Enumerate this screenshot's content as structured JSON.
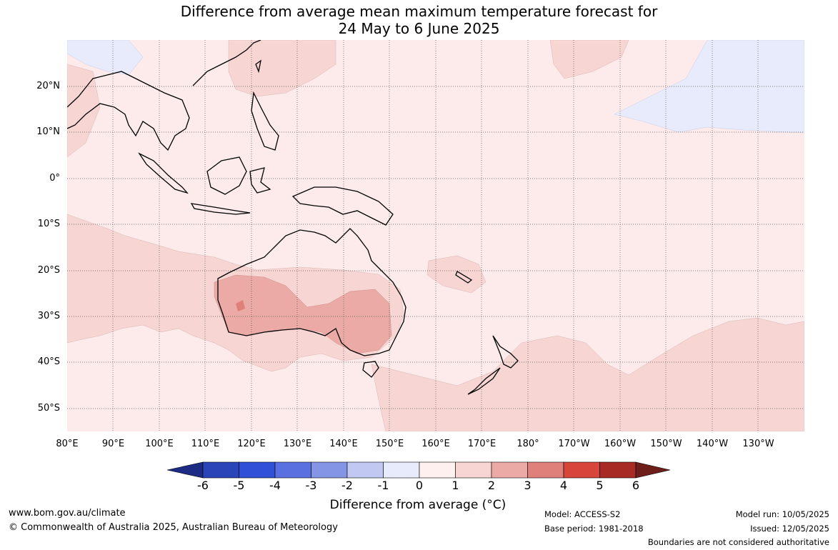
{
  "title_line1": "Difference from average mean maximum temperature forecast for",
  "title_line2": "24 May to 6 June 2025",
  "lat_labels": [
    "20°N",
    "10°N",
    "0°",
    "10°S",
    "20°S",
    "30°S",
    "40°S",
    "50°S"
  ],
  "lon_labels": [
    "80°E",
    "90°E",
    "100°E",
    "110°E",
    "120°E",
    "130°E",
    "140°E",
    "150°E",
    "160°E",
    "170°E",
    "180°",
    "170°W",
    "160°W",
    "150°W",
    "140°W",
    "130°W"
  ],
  "colorbar": {
    "ticks": [
      "-6",
      "-5",
      "-4",
      "-3",
      "-2",
      "-1",
      "0",
      "1",
      "2",
      "3",
      "4",
      "5",
      "6"
    ],
    "colors": [
      "#1c2c84",
      "#2b44b8",
      "#3050d8",
      "#5a70e0",
      "#8595e6",
      "#c1c8f2",
      "#e8ebfb",
      "#fdf0ee",
      "#f6d5d3",
      "#ebaaa6",
      "#e0807a",
      "#d8453a",
      "#a82a24",
      "#6e1e1a"
    ],
    "title": "Difference from average (°C)"
  },
  "footer": {
    "url": "www.bom.gov.au/climate",
    "copyright": "© Commonwealth of Australia 2025, Australian Bureau of Meteorology",
    "model": "Model: ACCESS-S2",
    "base_period": "Base period: 1981-2018",
    "model_run": "Model run: 10/05/2025",
    "issued": "Issued: 12/05/2025",
    "disclaimer": "Boundaries are not considered authoritative"
  }
}
